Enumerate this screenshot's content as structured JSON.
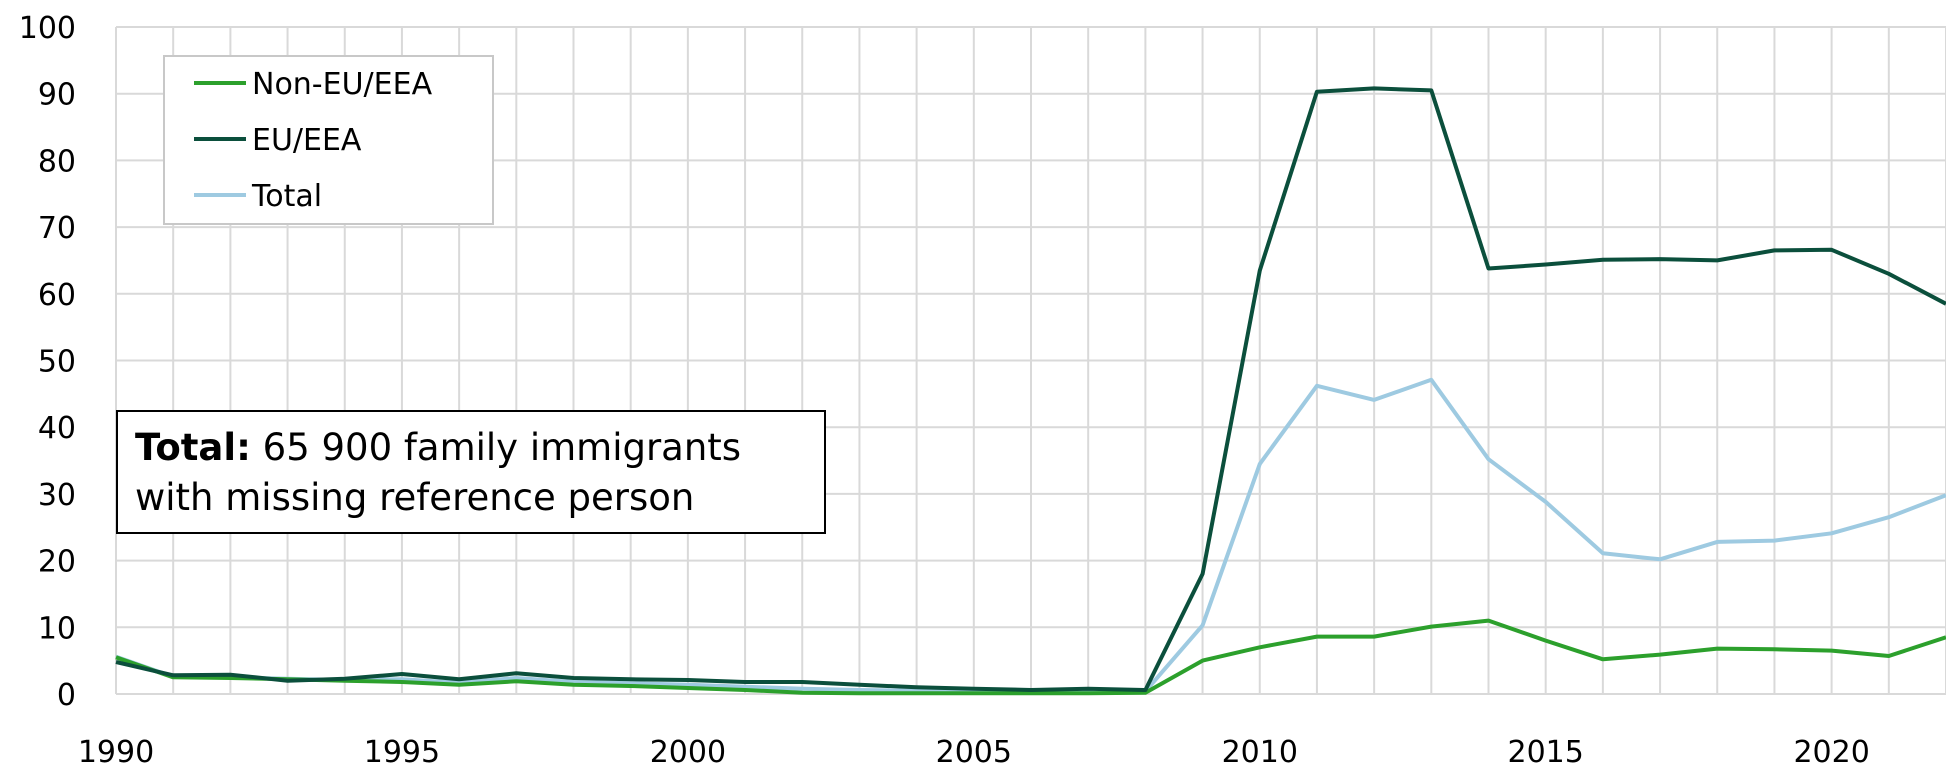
{
  "chart_data": {
    "type": "line",
    "title": "",
    "xlabel": "",
    "ylabel": "",
    "xlim": [
      1990,
      2022
    ],
    "ylim": [
      0,
      100
    ],
    "x_ticks": [
      "1990",
      "1995",
      "2000",
      "2005",
      "2010",
      "2015",
      "2020"
    ],
    "y_ticks": [
      "0",
      "10",
      "20",
      "30",
      "40",
      "50",
      "60",
      "70",
      "80",
      "90",
      "100"
    ],
    "grid": true,
    "legend_position": "top-left",
    "x": [
      1990,
      1991,
      1992,
      1993,
      1994,
      1995,
      1996,
      1997,
      1998,
      1999,
      2000,
      2001,
      2002,
      2003,
      2004,
      2005,
      2006,
      2007,
      2008,
      2009,
      2010,
      2011,
      2012,
      2013,
      2014,
      2015,
      2016,
      2017,
      2018,
      2019,
      2020,
      2021,
      2022
    ],
    "series": [
      {
        "name": "Non-EU/EEA",
        "color": "#2ca02c",
        "values": [
          5.5,
          2.5,
          2.4,
          2.2,
          2.0,
          1.8,
          1.4,
          1.9,
          1.4,
          1.2,
          0.9,
          0.6,
          0.2,
          0.1,
          0.1,
          0.1,
          0.1,
          0.1,
          0.2,
          5.0,
          7.0,
          8.6,
          8.6,
          10.1,
          11.0,
          8.0,
          5.2,
          5.9,
          6.8,
          6.7,
          6.5,
          5.7,
          8.5
        ]
      },
      {
        "name": "EU/EEA",
        "color": "#0b4f3c",
        "values": [
          4.8,
          2.8,
          2.9,
          2.0,
          2.3,
          3.0,
          2.2,
          3.1,
          2.4,
          2.2,
          2.1,
          1.8,
          1.8,
          1.4,
          1.0,
          0.8,
          0.6,
          0.8,
          0.6,
          18.0,
          63.5,
          90.3,
          90.8,
          90.5,
          63.8,
          64.4,
          65.1,
          65.2,
          65.0,
          66.5,
          66.6,
          63.0,
          58.5
        ]
      },
      {
        "name": "Total",
        "color": "#9ecae1",
        "values": [
          5.6,
          2.6,
          2.5,
          2.3,
          2.1,
          2.2,
          1.7,
          2.4,
          1.8,
          1.6,
          1.4,
          1.1,
          0.8,
          0.6,
          0.5,
          0.4,
          0.3,
          0.4,
          0.4,
          10.3,
          34.5,
          46.2,
          44.1,
          47.1,
          35.2,
          28.8,
          21.1,
          20.2,
          22.8,
          23.0,
          24.1,
          26.5,
          29.8
        ]
      }
    ],
    "annotation": {
      "bold": "Total:",
      "line1_rest": " 65 900 family immigrants",
      "line2": "with missing reference person"
    }
  }
}
